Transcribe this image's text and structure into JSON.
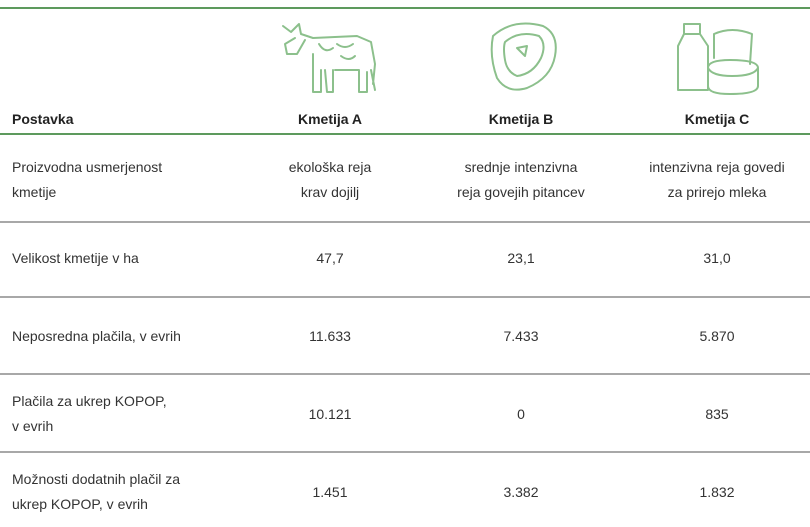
{
  "table": {
    "header": [
      "Postavka",
      "Kmetija A",
      "Kmetija B",
      "Kmetija C"
    ],
    "rows": [
      [
        [
          "Proizvodna usmerjenost",
          "kmetije"
        ],
        [
          "ekološka reja",
          "krav dojilj"
        ],
        [
          "srednje intenzivna",
          "reja govejih pitancev"
        ],
        [
          "intenzivna reja govedi",
          "za prirejo mleka"
        ]
      ],
      [
        [
          "Velikost kmetije v ha"
        ],
        [
          "47,7"
        ],
        [
          "23,1"
        ],
        [
          "31,0"
        ]
      ],
      [
        [
          "Neposredna plačila, v evrih"
        ],
        [
          "11.633"
        ],
        [
          "7.433"
        ],
        [
          "5.870"
        ]
      ],
      [
        [
          "Plačila za ukrep KOPOP,",
          "v evrih"
        ],
        [
          "10.121"
        ],
        [
          "0"
        ],
        [
          "835"
        ]
      ],
      [
        [
          "Možnosti dodatnih plačil za",
          "ukrep KOPOP, v evrih"
        ],
        [
          "1.451"
        ],
        [
          "3.382"
        ],
        [
          "1.832"
        ]
      ]
    ]
  }
}
